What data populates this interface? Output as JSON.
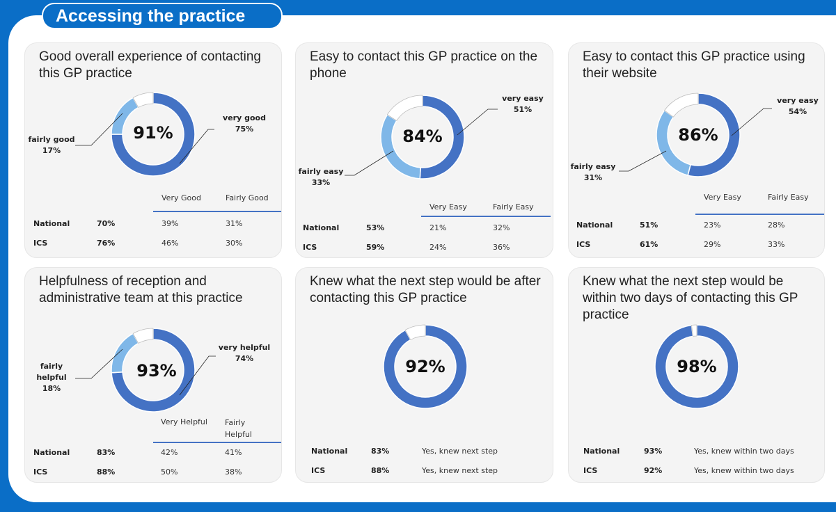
{
  "header": {
    "title": "Accessing the practice"
  },
  "colors": {
    "dark": "#4472c4",
    "light": "#7fb7e8",
    "rest": "#ffffff",
    "background": "#0a6ec7"
  },
  "chart_data": [
    {
      "type": "pie",
      "title": "Good overall experience of contacting this GP practice",
      "total": "91%",
      "slices": [
        {
          "label_line1": "very good",
          "label_line2": "",
          "value_label": "75%",
          "value": 75
        },
        {
          "label_line1": "fairly good",
          "label_line2": "",
          "value_label": "17%",
          "value": 17
        }
      ],
      "table": {
        "headers": [
          "Very Good",
          "Fairly Good"
        ],
        "rows": [
          {
            "name": "National",
            "total": "70%",
            "c1": "39%",
            "c2": "31%"
          },
          {
            "name": "ICS",
            "total": "76%",
            "c1": "46%",
            "c2": "30%"
          }
        ]
      }
    },
    {
      "type": "pie",
      "title": "Easy to contact this GP practice on the phone",
      "total": "84%",
      "slices": [
        {
          "label_line1": "very easy",
          "label_line2": "",
          "value_label": "51%",
          "value": 51
        },
        {
          "label_line1": "fairly easy",
          "label_line2": "",
          "value_label": "33%",
          "value": 33
        }
      ],
      "table": {
        "headers": [
          "Very Easy",
          "Fairly Easy"
        ],
        "rows": [
          {
            "name": "National",
            "total": "53%",
            "c1": "21%",
            "c2": "32%"
          },
          {
            "name": "ICS",
            "total": "59%",
            "c1": "24%",
            "c2": "36%"
          }
        ]
      }
    },
    {
      "type": "pie",
      "title": "Easy to contact this GP practice using their website",
      "total": "86%",
      "slices": [
        {
          "label_line1": "very easy",
          "label_line2": "",
          "value_label": "54%",
          "value": 54
        },
        {
          "label_line1": "fairly easy",
          "label_line2": "",
          "value_label": "31%",
          "value": 31
        }
      ],
      "table": {
        "headers": [
          "Very Easy",
          "Fairly Easy"
        ],
        "rows": [
          {
            "name": "National",
            "total": "51%",
            "c1": "23%",
            "c2": "28%"
          },
          {
            "name": "ICS",
            "total": "61%",
            "c1": "29%",
            "c2": "33%"
          }
        ]
      }
    },
    {
      "type": "pie",
      "title": "Helpfulness of reception and administrative team at this practice",
      "total": "93%",
      "slices": [
        {
          "label_line1": "very helpful",
          "label_line2": "",
          "value_label": "74%",
          "value": 74
        },
        {
          "label_line1": "fairly",
          "label_line2": "helpful",
          "value_label": "18%",
          "value": 18
        }
      ],
      "table": {
        "headers": [
          "Very Helpful",
          "Fairly Helpful"
        ],
        "rows": [
          {
            "name": "National",
            "total": "83%",
            "c1": "42%",
            "c2": "41%"
          },
          {
            "name": "ICS",
            "total": "88%",
            "c1": "50%",
            "c2": "38%"
          }
        ]
      }
    },
    {
      "type": "pie",
      "title": "Knew what the next step would be after contacting this GP practice",
      "total": "92%",
      "slices": [
        {
          "value": 92
        }
      ],
      "table": {
        "rows": [
          {
            "name": "National",
            "total": "83%",
            "c1": "Yes, knew next step"
          },
          {
            "name": "ICS",
            "total": "88%",
            "c1": "Yes, knew next step"
          }
        ]
      }
    },
    {
      "type": "pie",
      "title": "Knew what the next step would be within two days of contacting this GP practice",
      "total": "98%",
      "slices": [
        {
          "value": 98
        }
      ],
      "table": {
        "rows": [
          {
            "name": "National",
            "total": "93%",
            "c1": "Yes, knew within two days"
          },
          {
            "name": "ICS",
            "total": "92%",
            "c1": "Yes, knew within two days"
          }
        ]
      }
    }
  ]
}
